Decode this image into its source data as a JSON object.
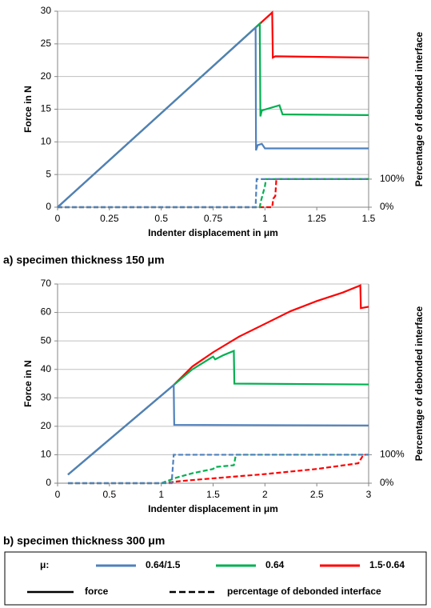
{
  "chart_data": [
    {
      "type": "line",
      "caption": "a) specimen thickness 150 μm",
      "xlabel": "Indenter displacement in μm",
      "ylabel": "Force in N",
      "y2label": "Percentage of debonded interface",
      "xlim": [
        0,
        1.5
      ],
      "ylim": [
        0,
        30
      ],
      "y2lim": [
        0,
        698
      ],
      "xticks": [
        0,
        0.25,
        0.5,
        0.75,
        1,
        1.25,
        1.5
      ],
      "yticks": [
        0,
        5,
        10,
        15,
        20,
        25,
        30
      ],
      "y2ticks": [
        {
          "value": 0,
          "label": "0%"
        },
        {
          "value": 100,
          "label": "100%"
        }
      ],
      "grid": true,
      "series": [
        {
          "color": "#4f81bd",
          "dash": false,
          "x": [
            0,
            0.955,
            0.957,
            0.965,
            0.985,
            1.0,
            1.5
          ],
          "values": [
            0,
            27.5,
            8.7,
            9.5,
            9.7,
            9.0,
            9.0
          ]
        },
        {
          "color": "#00b050",
          "dash": false,
          "x": [
            0,
            0.975,
            0.978,
            0.985,
            1.07,
            1.085,
            1.5
          ],
          "values": [
            0,
            28.1,
            13.9,
            14.8,
            15.6,
            14.2,
            14.1
          ]
        },
        {
          "color": "#ff0000",
          "dash": false,
          "x": [
            0,
            1.035,
            1.038,
            1.05,
            1.5
          ],
          "values": [
            0,
            29.8,
            22.9,
            23.1,
            22.9
          ]
        },
        {
          "color": "#4f81bd",
          "dash": true,
          "axis": "y2",
          "x": [
            0,
            0.955,
            0.96,
            1.5
          ],
          "values": [
            0,
            0,
            100,
            100
          ]
        },
        {
          "color": "#00b050",
          "dash": true,
          "axis": "y2",
          "x": [
            0,
            0.975,
            0.98,
            1.0,
            1.005,
            1.5
          ],
          "values": [
            0,
            0,
            20,
            75,
            100,
            100
          ]
        },
        {
          "color": "#ff0000",
          "dash": true,
          "axis": "y2",
          "x": [
            0,
            1.035,
            1.04,
            1.05,
            1.055,
            1.5
          ],
          "values": [
            0,
            0,
            30,
            40,
            100,
            100
          ]
        }
      ]
    },
    {
      "type": "line",
      "caption": "b) specimen thickness 300 μm",
      "xlabel": "Indenter displacement in μm",
      "ylabel": "Force in N",
      "y2label": "Percentage of debonded interface",
      "xlim": [
        0,
        3
      ],
      "ylim": [
        0,
        70
      ],
      "y2lim": [
        0,
        700
      ],
      "xticks": [
        0,
        0.5,
        1,
        1.5,
        2,
        2.5,
        3
      ],
      "yticks": [
        0,
        10,
        20,
        30,
        40,
        50,
        60,
        70
      ],
      "y2ticks": [
        {
          "value": 0,
          "label": "0%"
        },
        {
          "value": 100,
          "label": "100%"
        }
      ],
      "grid": true,
      "series": [
        {
          "color": "#4f81bd",
          "dash": false,
          "x": [
            0.1,
            1.12,
            1.125,
            3.0
          ],
          "values": [
            3,
            34.5,
            20.5,
            20.3
          ]
        },
        {
          "color": "#00b050",
          "dash": false,
          "x": [
            0.1,
            1.12,
            1.3,
            1.5,
            1.52,
            1.6,
            1.7,
            1.705,
            3.0
          ],
          "values": [
            3,
            34.5,
            40,
            44.5,
            43.5,
            45,
            46.5,
            35,
            34.7
          ]
        },
        {
          "color": "#ff0000",
          "dash": false,
          "x": [
            0.1,
            1.12,
            1.3,
            1.5,
            1.75,
            2.0,
            2.25,
            2.5,
            2.75,
            2.92,
            2.925,
            3.0
          ],
          "values": [
            3,
            34.5,
            41,
            46,
            51.5,
            56,
            60.5,
            64,
            67,
            69.5,
            61.5,
            62
          ]
        },
        {
          "color": "#4f81bd",
          "dash": true,
          "axis": "y2",
          "x": [
            0.1,
            1.1,
            1.12,
            3.0
          ],
          "values": [
            0,
            0,
            100,
            100
          ]
        },
        {
          "color": "#00b050",
          "dash": true,
          "axis": "y2",
          "x": [
            0.1,
            1.0,
            1.15,
            1.3,
            1.5,
            1.52,
            1.7,
            1.72,
            3.0
          ],
          "values": [
            0,
            0,
            20,
            35,
            50,
            57,
            63,
            100,
            100
          ]
        },
        {
          "color": "#ff0000",
          "dash": true,
          "axis": "y2",
          "x": [
            0.1,
            1.0,
            1.2,
            1.5,
            2.0,
            2.5,
            2.9,
            2.95,
            3.0
          ],
          "values": [
            0,
            0,
            8,
            17,
            32,
            50,
            70,
            100,
            100
          ]
        }
      ]
    }
  ],
  "legend": {
    "title": "μ:",
    "mu_items": [
      {
        "label": "0.64/1.5",
        "color": "#4f81bd"
      },
      {
        "label": "0.64",
        "color": "#00b050"
      },
      {
        "label": "1.5·0.64",
        "color": "#ff0000"
      }
    ],
    "style_items": [
      {
        "label": "force",
        "dash": false
      },
      {
        "label": "percentage of debonded interface",
        "dash": true
      }
    ]
  }
}
